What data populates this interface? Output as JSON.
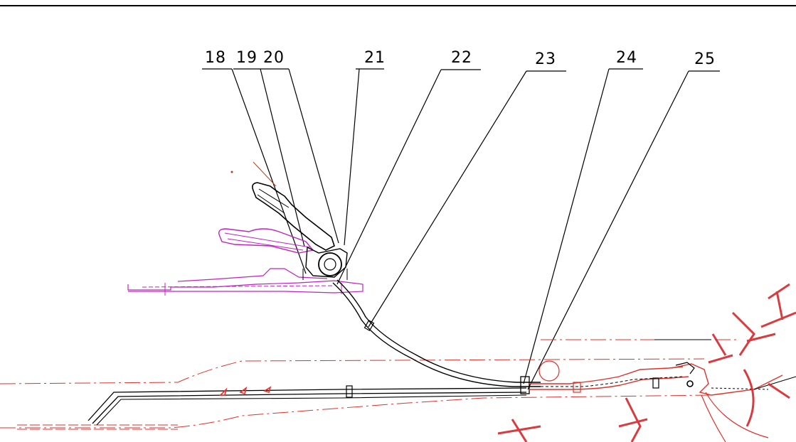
{
  "drawing": {
    "callouts": [
      {
        "id": "18",
        "label": "18"
      },
      {
        "id": "19",
        "label": "19"
      },
      {
        "id": "20",
        "label": "20"
      },
      {
        "id": "21",
        "label": "21"
      },
      {
        "id": "22",
        "label": "22"
      },
      {
        "id": "23",
        "label": "23"
      },
      {
        "id": "24",
        "label": "24"
      },
      {
        "id": "25",
        "label": "25"
      }
    ],
    "colors": {
      "line": "#000000",
      "centerline": "#e0312b",
      "ghost_part": "#c024c0",
      "watermark": "#d7262b"
    }
  }
}
